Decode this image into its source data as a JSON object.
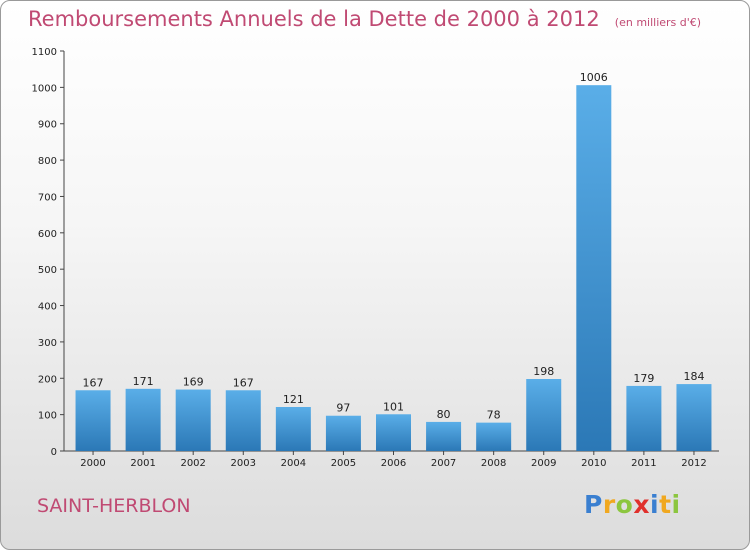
{
  "title": "Remboursements Annuels de la Dette de 2000 à 2012",
  "unit_note": "(en milliers d'€)",
  "place": "SAINT-HERBLON",
  "logo": {
    "text": "Proxiti",
    "letters": [
      {
        "ch": "P",
        "color": "#3a7fd0"
      },
      {
        "ch": "r",
        "color": "#f0a820"
      },
      {
        "ch": "o",
        "color": "#8cc63f"
      },
      {
        "ch": "x",
        "color": "#e0302c"
      },
      {
        "ch": "i",
        "color": "#3a7fd0"
      },
      {
        "ch": "t",
        "color": "#f0a820"
      },
      {
        "ch": "i",
        "color": "#8cc63f"
      }
    ]
  },
  "colors": {
    "bar_light": "#5aaee8",
    "bar_dark": "#2b78b6",
    "title": "#c04a73"
  },
  "chart_data": {
    "type": "bar",
    "categories": [
      "2000",
      "2001",
      "2002",
      "2003",
      "2004",
      "2005",
      "2006",
      "2007",
      "2008",
      "2009",
      "2010",
      "2011",
      "2012"
    ],
    "values": [
      167,
      171,
      169,
      167,
      121,
      97,
      101,
      80,
      78,
      198,
      1006,
      179,
      184
    ],
    "title": "Remboursements Annuels de la Dette de 2000 à 2012",
    "ylim": [
      0,
      1100
    ],
    "yticks": [
      0,
      100,
      200,
      300,
      400,
      500,
      600,
      700,
      800,
      900,
      1000,
      1100
    ],
    "grid": false,
    "legend": "none"
  }
}
